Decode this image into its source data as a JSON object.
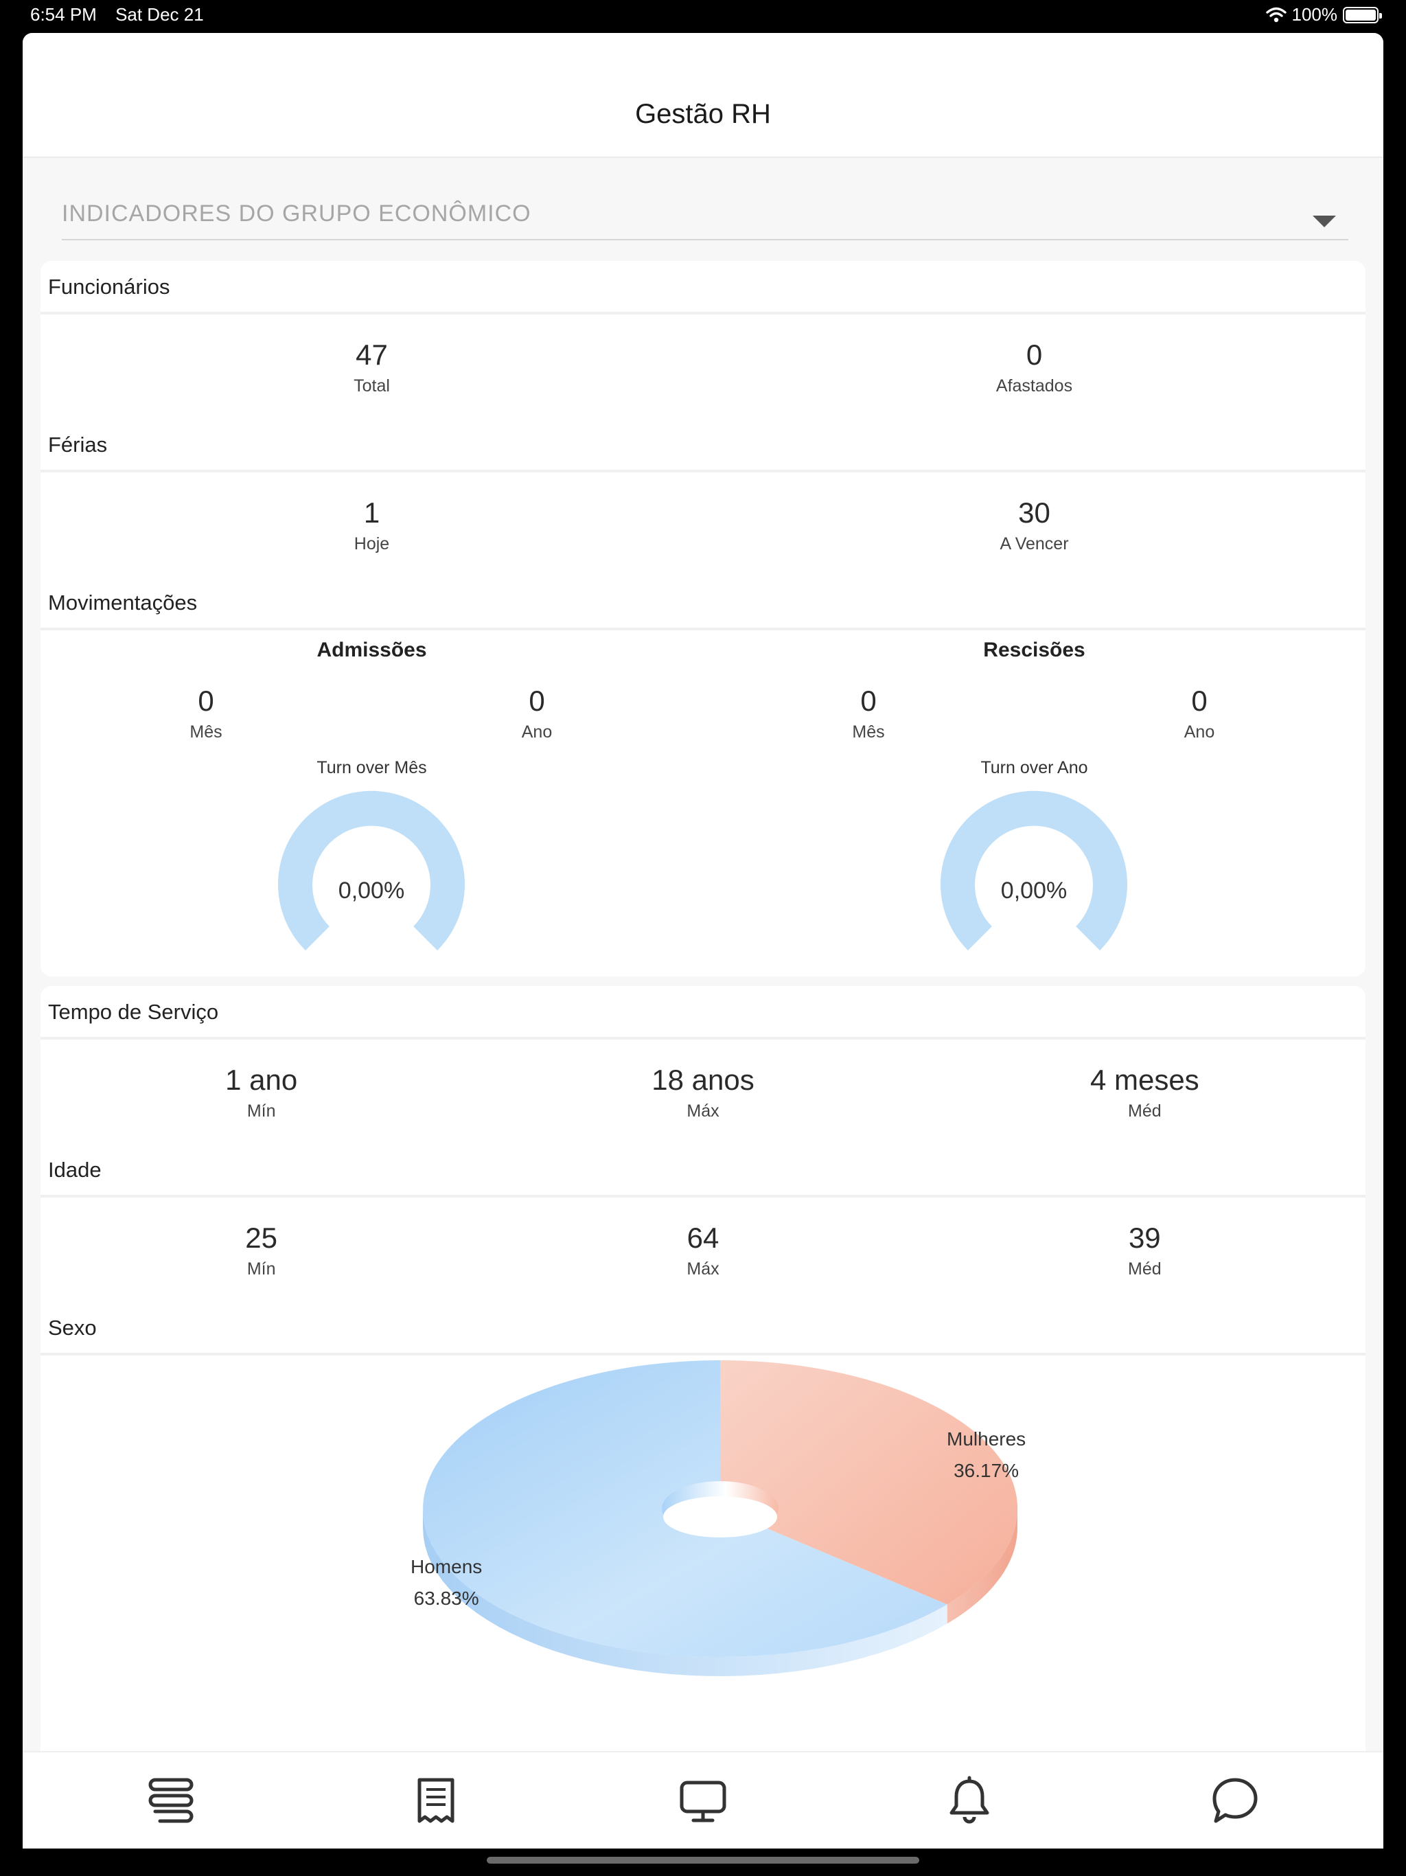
{
  "status_bar": {
    "time": "6:54 PM",
    "date": "Sat Dec 21",
    "battery": "100%"
  },
  "header": {
    "title": "Gestão RH"
  },
  "selector": {
    "value": "INDICADORES DO GRUPO ECONÔMICO"
  },
  "funcionarios": {
    "title": "Funcionários",
    "stats": [
      {
        "value": "47",
        "label": "Total"
      },
      {
        "value": "0",
        "label": "Afastados"
      }
    ]
  },
  "ferias": {
    "title": "Férias",
    "stats": [
      {
        "value": "1",
        "label": "Hoje"
      },
      {
        "value": "30",
        "label": "A Vencer"
      }
    ]
  },
  "movimentacoes": {
    "title": "Movimentações",
    "admissoes": {
      "heading": "Admissões",
      "stats": [
        {
          "value": "0",
          "label": "Mês"
        },
        {
          "value": "0",
          "label": "Ano"
        }
      ],
      "turnover_label": "Turn over Mês",
      "turnover_value": "0,00%"
    },
    "rescisoes": {
      "heading": "Rescisões",
      "stats": [
        {
          "value": "0",
          "label": "Mês"
        },
        {
          "value": "0",
          "label": "Ano"
        }
      ],
      "turnover_label": "Turn over Ano",
      "turnover_value": "0,00%"
    }
  },
  "tempo_servico": {
    "title": "Tempo de Serviço",
    "stats": [
      {
        "value": "1 ano",
        "label": "Mín"
      },
      {
        "value": "18 anos",
        "label": "Máx"
      },
      {
        "value": "4 meses",
        "label": "Méd"
      }
    ]
  },
  "idade": {
    "title": "Idade",
    "stats": [
      {
        "value": "25",
        "label": "Mín"
      },
      {
        "value": "64",
        "label": "Máx"
      },
      {
        "value": "39",
        "label": "Méd"
      }
    ]
  },
  "sexo": {
    "title": "Sexo"
  },
  "chart_data": {
    "type": "pie",
    "categories": [
      "Homens",
      "Mulheres"
    ],
    "values": [
      63.83,
      36.17
    ],
    "labels": [
      "63.83%",
      "36.17%"
    ],
    "colors": [
      "#a9d2f7",
      "#f7b9a6"
    ]
  },
  "tabbar": {
    "icons": [
      "stack-icon",
      "receipt-icon",
      "monitor-icon",
      "bell-icon",
      "chat-icon"
    ]
  },
  "colors": {
    "gauge": "#bfdff8",
    "caret": "#555555"
  }
}
